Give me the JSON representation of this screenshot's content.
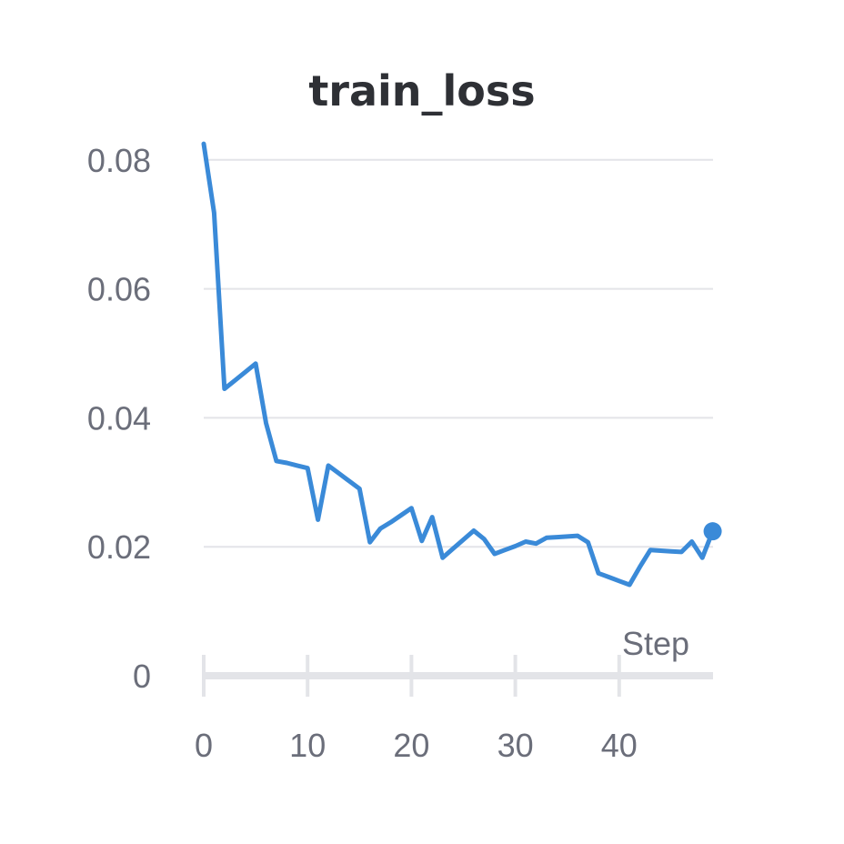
{
  "chart_data": {
    "type": "line",
    "title": "train_loss",
    "xlabel": "Step",
    "ylabel": "",
    "xlim": [
      0,
      49
    ],
    "ylim": [
      0,
      0.085
    ],
    "x_ticks": [
      0,
      10,
      20,
      30,
      40
    ],
    "x_tick_labels": [
      "0",
      "10",
      "20",
      "30",
      "40"
    ],
    "y_ticks": [
      0,
      0.02,
      0.04,
      0.06,
      0.08
    ],
    "y_tick_labels": [
      "0",
      "0.02",
      "0.04",
      "0.06",
      "0.08"
    ],
    "grid": true,
    "legend": "none",
    "series": [
      {
        "color": "#3a8ad8",
        "x": [
          0,
          1,
          2,
          3,
          4,
          5,
          6,
          7,
          8,
          9,
          10,
          11,
          12,
          13,
          14,
          15,
          16,
          17,
          18,
          19,
          20,
          21,
          22,
          23,
          24,
          25,
          26,
          27,
          28,
          29,
          30,
          31,
          32,
          33,
          34,
          35,
          36,
          37,
          38,
          39,
          40,
          41,
          42,
          43,
          44,
          45,
          46,
          47,
          48,
          49
        ],
        "y": [
          0.0825,
          0.0718,
          0.0445,
          0.0458,
          0.0471,
          0.0484,
          0.0392,
          0.0333,
          0.033,
          0.0326,
          0.0322,
          0.0242,
          0.0326,
          0.0314,
          0.0302,
          0.029,
          0.0207,
          0.0228,
          0.0238,
          0.0249,
          0.026,
          0.0209,
          0.0246,
          0.0183,
          0.0197,
          0.0211,
          0.0225,
          0.0212,
          0.0189,
          0.0195,
          0.0201,
          0.0208,
          0.0205,
          0.0214,
          0.0215,
          0.0216,
          0.0217,
          0.0207,
          0.0159,
          0.0153,
          0.0147,
          0.0141,
          0.0169,
          0.0195,
          0.0194,
          0.0193,
          0.0192,
          0.0208,
          0.0183,
          0.0224
        ]
      }
    ]
  }
}
